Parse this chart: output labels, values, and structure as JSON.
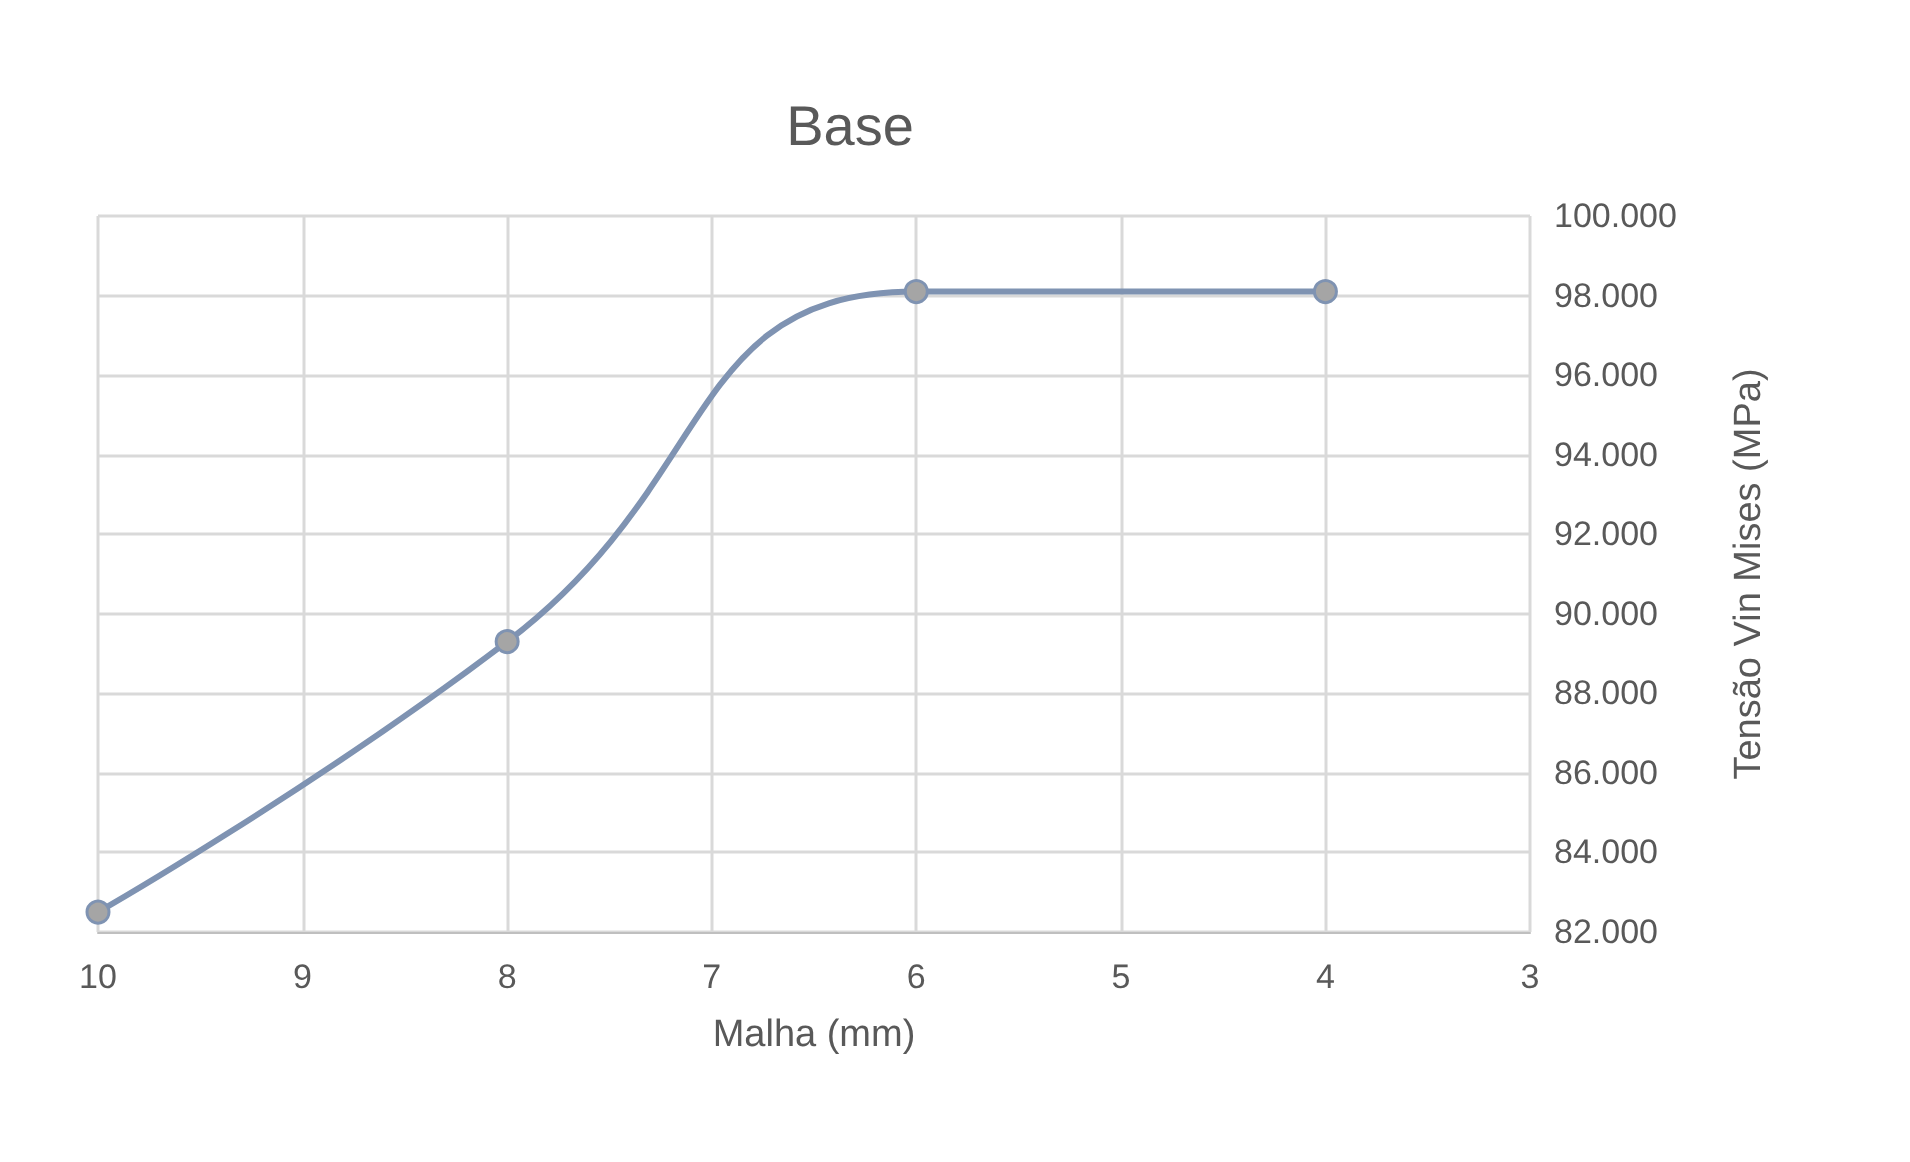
{
  "chart_data": {
    "type": "line",
    "title": "Base",
    "xlabel": "Malha (mm)",
    "ylabel": "Tensão Vin Mises (MPa)",
    "x": [
      10,
      8,
      6,
      4
    ],
    "series": [
      {
        "color": "#7f93b2",
        "values": [
          82500,
          89300,
          98100,
          98100
        ]
      }
    ],
    "xlim": [
      10,
      3
    ],
    "xticks": [
      10,
      9,
      8,
      7,
      6,
      5,
      4,
      3
    ],
    "ylim": [
      82000,
      100000
    ],
    "yticks": [
      {
        "value": 82000,
        "label": "82.000"
      },
      {
        "value": 84000,
        "label": "84.000"
      },
      {
        "value": 86000,
        "label": "86.000"
      },
      {
        "value": 88000,
        "label": "88.000"
      },
      {
        "value": 90000,
        "label": "90.000"
      },
      {
        "value": 92000,
        "label": "92.000"
      },
      {
        "value": 94000,
        "label": "94.000"
      },
      {
        "value": 96000,
        "label": "96.000"
      },
      {
        "value": 98000,
        "label": "98.000"
      },
      {
        "value": 100000,
        "label": "100.000"
      }
    ],
    "grid": true,
    "marker": "circle",
    "line_style": "solid"
  }
}
